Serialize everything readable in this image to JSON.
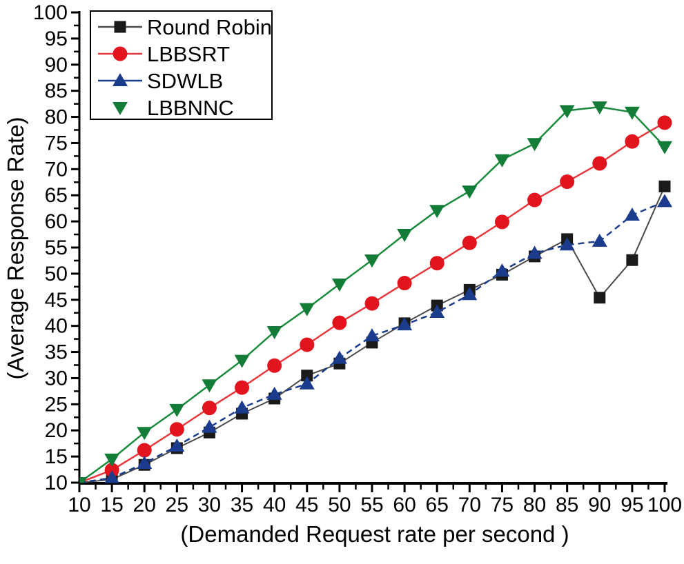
{
  "chart_data": {
    "type": "line",
    "title": "",
    "xlabel": "(Demanded Request rate per second )",
    "ylabel": "(Average Response Rate)",
    "xlim": [
      10,
      100
    ],
    "ylim": [
      10,
      100
    ],
    "xticks": [
      10,
      15,
      20,
      25,
      30,
      35,
      40,
      45,
      50,
      55,
      60,
      65,
      70,
      75,
      80,
      85,
      90,
      95,
      100
    ],
    "yticks": [
      10,
      15,
      20,
      25,
      30,
      35,
      40,
      45,
      50,
      55,
      60,
      65,
      70,
      75,
      80,
      85,
      90,
      95,
      100
    ],
    "grid": false,
    "legend": {
      "position": "top-left",
      "background": "#ffffff",
      "border_color": "#000000"
    },
    "x": [
      10,
      15,
      20,
      25,
      30,
      35,
      40,
      45,
      50,
      55,
      60,
      65,
      70,
      75,
      80,
      85,
      90,
      95,
      100
    ],
    "series": [
      {
        "name": "Round Robin",
        "marker": "square",
        "marker_color": "#1a1a1a",
        "line_color": "#4a4a4a",
        "line_style": "solid",
        "legend_line": true,
        "values": [
          10,
          10.6,
          13.4,
          16.6,
          19.6,
          23.2,
          26.1,
          30.5,
          32.8,
          36.8,
          40.5,
          43.9,
          46.9,
          49.8,
          53.3,
          56.6,
          45.4,
          52.6,
          66.7
        ]
      },
      {
        "name": "LBBSRT",
        "marker": "circle",
        "marker_color": "#e2141e",
        "line_color": "#e8383d",
        "line_style": "solid",
        "legend_line": true,
        "values": [
          10,
          12.4,
          16.2,
          20.2,
          24.3,
          28.2,
          32.4,
          36.4,
          40.6,
          44.3,
          48.2,
          52,
          55.9,
          59.9,
          64.1,
          67.6,
          71.1,
          75.3,
          78.9
        ]
      },
      {
        "name": "SDWLB",
        "marker": "triangle-up",
        "marker_color": "#1b3c8c",
        "line_color": "#1b3c8c",
        "line_style": "dashed",
        "legend_line": true,
        "values": [
          10,
          10.9,
          13.7,
          17,
          20.6,
          24.3,
          26.9,
          28.9,
          33.8,
          38.1,
          40.2,
          42.6,
          46,
          50.5,
          53.9,
          55.5,
          56.2,
          61.2,
          63.8
        ]
      },
      {
        "name": "LBBNNC",
        "marker": "triangle-down",
        "marker_color": "#137d37",
        "line_color": "#1a8a3c",
        "line_style": "solid",
        "legend_line": false,
        "values": [
          10,
          14.5,
          19.6,
          24,
          28.7,
          33.4,
          38.9,
          43.3,
          48,
          52.6,
          57.5,
          62.1,
          65.8,
          71.8,
          74.9,
          81.2,
          81.9,
          80.9,
          74.3
        ]
      }
    ]
  }
}
